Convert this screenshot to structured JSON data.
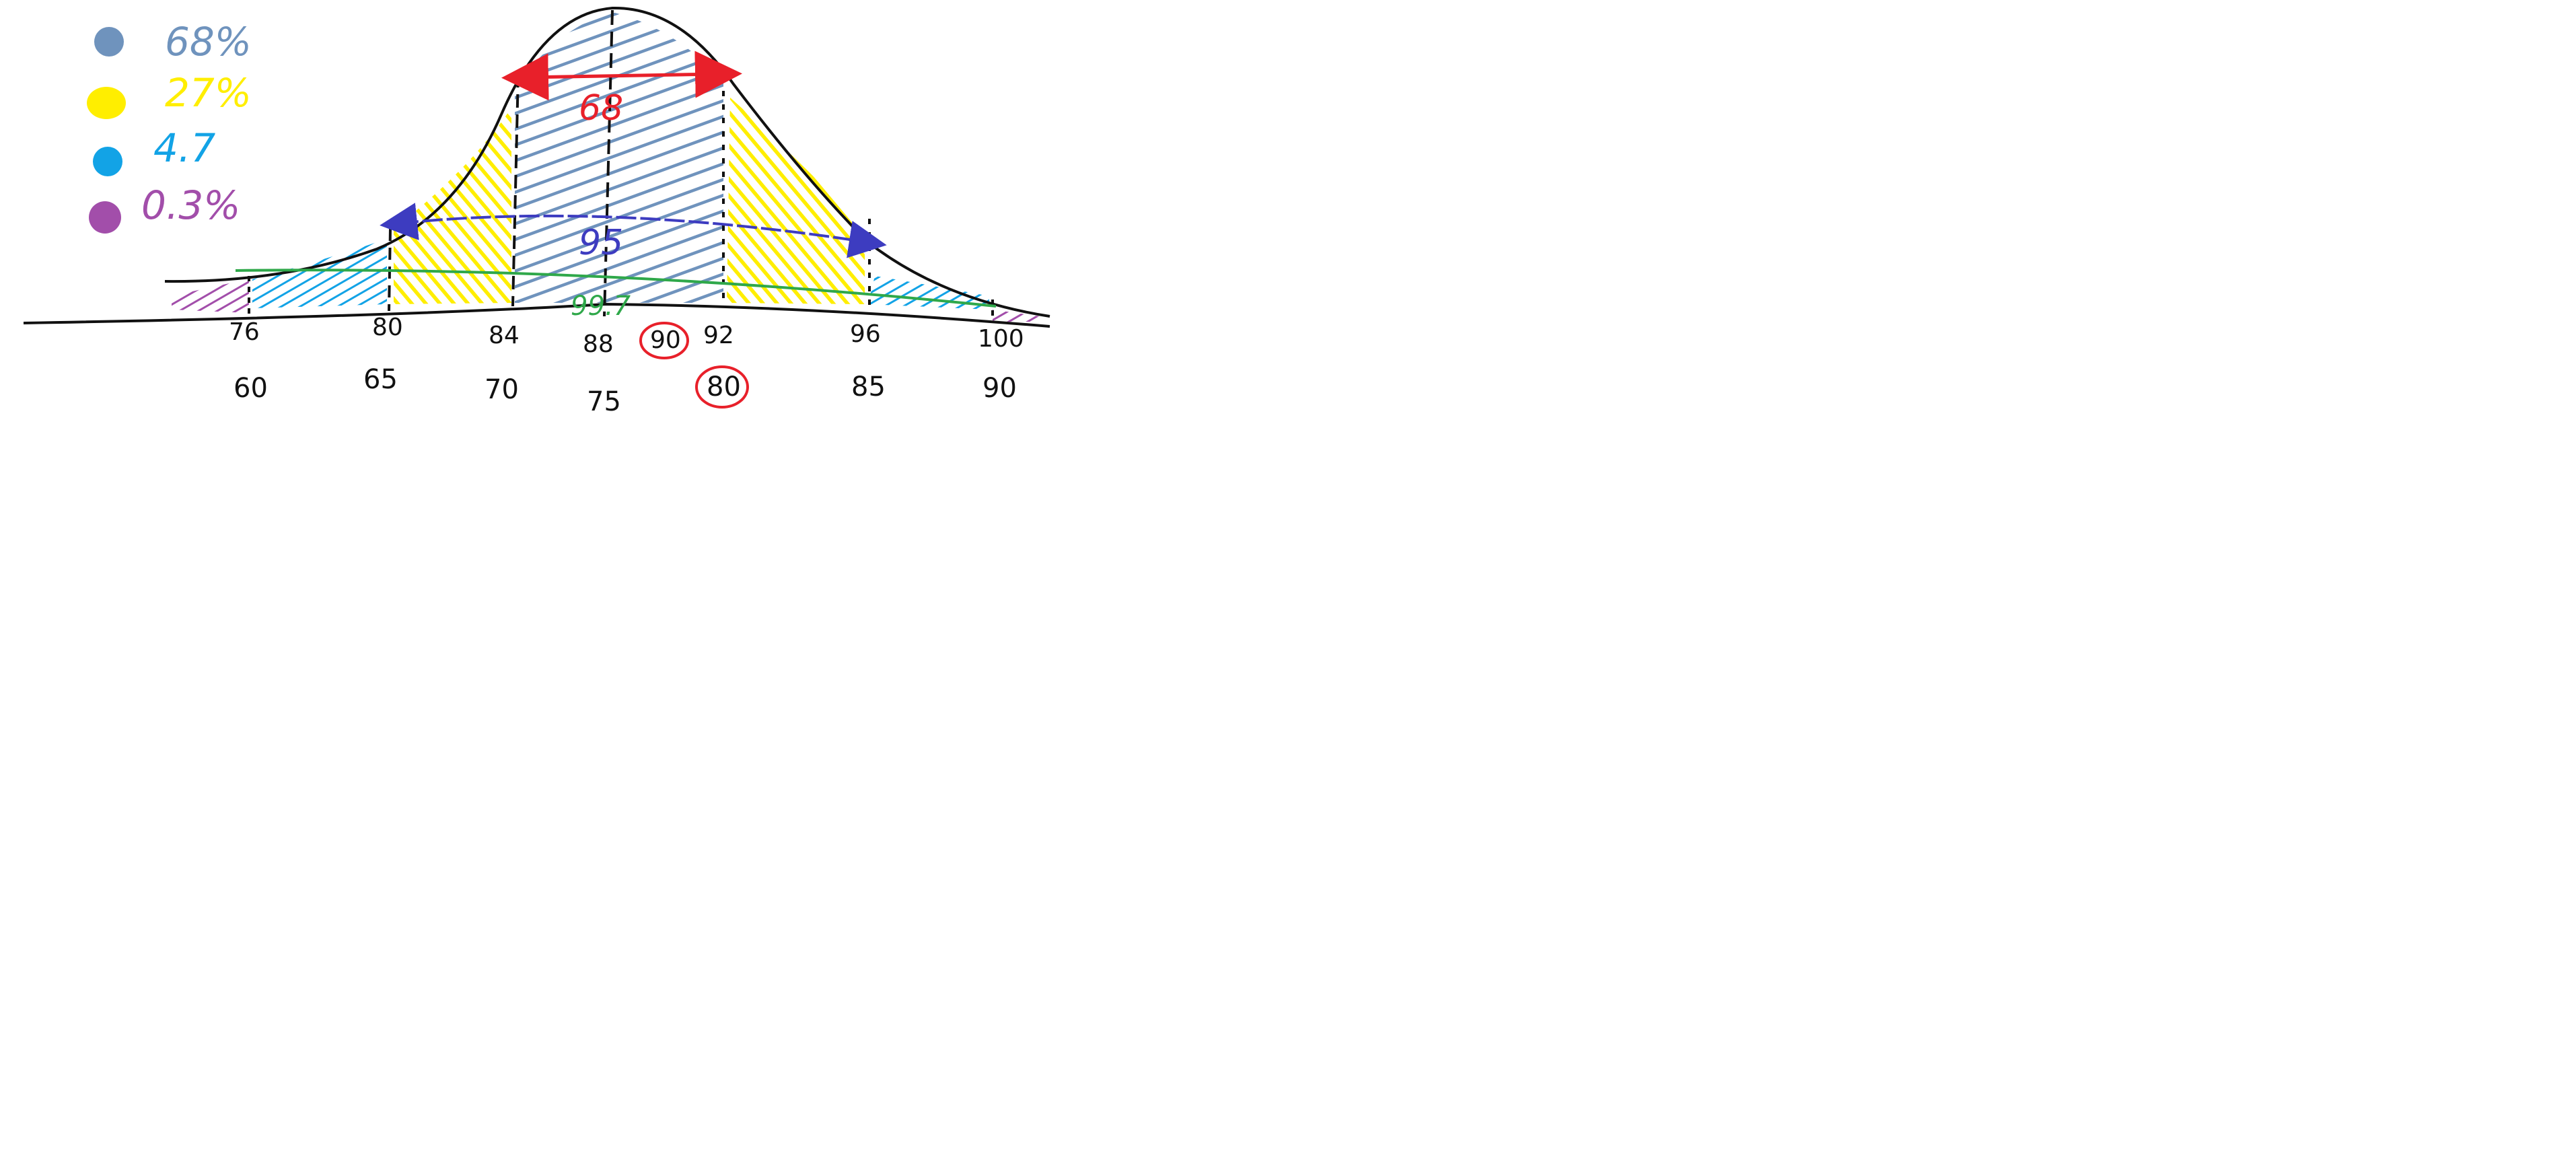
{
  "legend": [
    {
      "label": "68%",
      "color": "#6f93bd"
    },
    {
      "label": "27%",
      "color": "#ffee00"
    },
    {
      "label": "4.7",
      "color": "#12a3e6"
    },
    {
      "label": "0.3%",
      "color": "#a24eaa"
    }
  ],
  "scale_top": [
    "76",
    "80",
    "84",
    "88",
    "90",
    "92",
    "96",
    "100"
  ],
  "scale_bottom": [
    "60",
    "65",
    "70",
    "75",
    "80",
    "85",
    "90"
  ],
  "annotations": {
    "inner": "68",
    "middle": "95",
    "outer": "99.7"
  },
  "colors": {
    "ink": "#111111",
    "red": "#e8202a",
    "blue_arrow": "#3d3cc0",
    "green": "#2fa84a"
  }
}
